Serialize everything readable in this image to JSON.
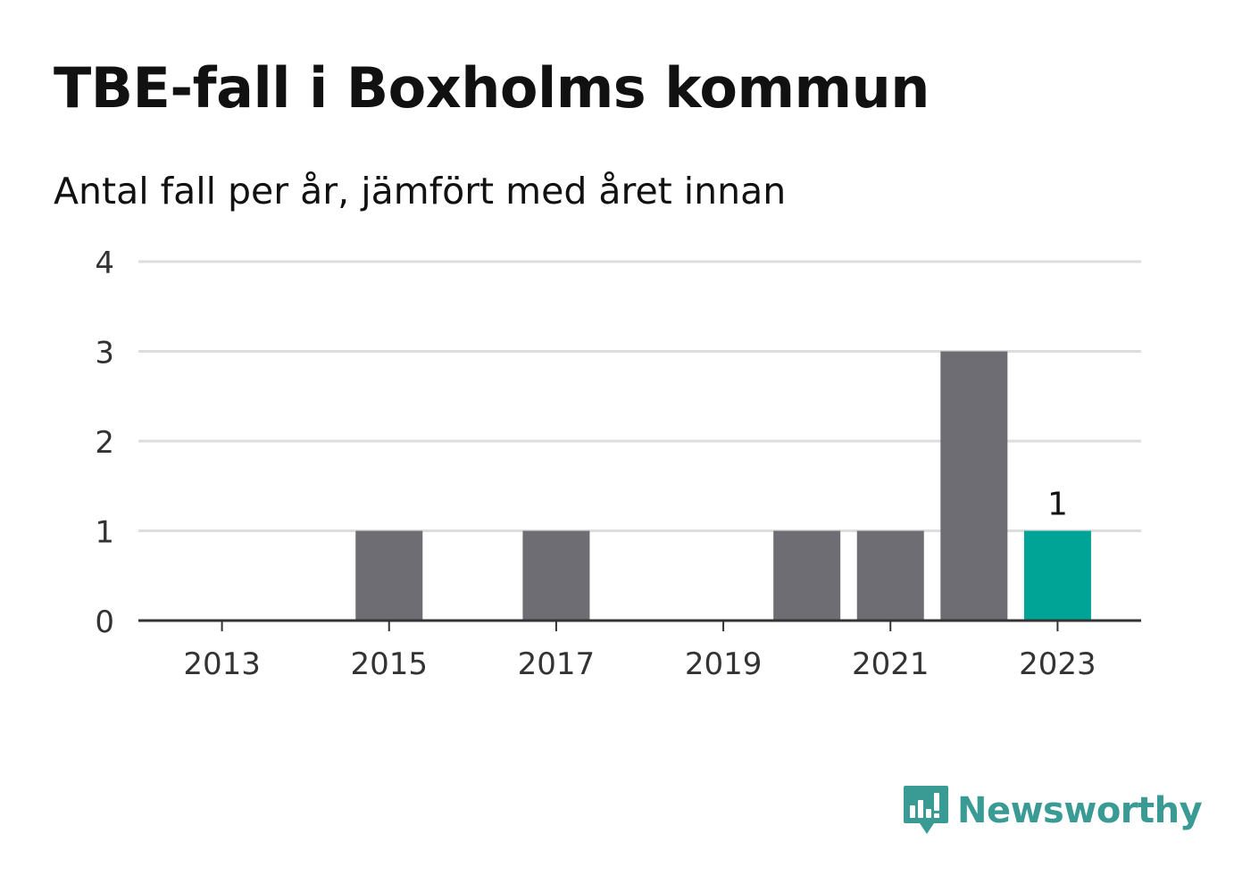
{
  "title": "TBE-fall i Boxholms kommun",
  "subtitle": "Antal fall per år, jämfört med året innan",
  "brand": {
    "name": "Newsworthy",
    "color": "#3a9a94"
  },
  "colors": {
    "bar": "#6e6d73",
    "highlight": "#00a497",
    "grid": "#dddddd",
    "axis": "#333333"
  },
  "chart_data": {
    "type": "bar",
    "categories": [
      "2013",
      "2014",
      "2015",
      "2016",
      "2017",
      "2018",
      "2019",
      "2020",
      "2021",
      "2022",
      "2023"
    ],
    "values": [
      0,
      0,
      1,
      0,
      1,
      0,
      0,
      1,
      1,
      3,
      1
    ],
    "highlight_index": 10,
    "data_labels": [
      {
        "index": 10,
        "text": "1"
      }
    ],
    "x_tick_labels": [
      "2013",
      "2015",
      "2017",
      "2019",
      "2021",
      "2023"
    ],
    "y_ticks": [
      0,
      1,
      2,
      3,
      4
    ],
    "ylim": [
      0,
      4
    ],
    "grid": true,
    "xlabel": "",
    "ylabel": ""
  }
}
